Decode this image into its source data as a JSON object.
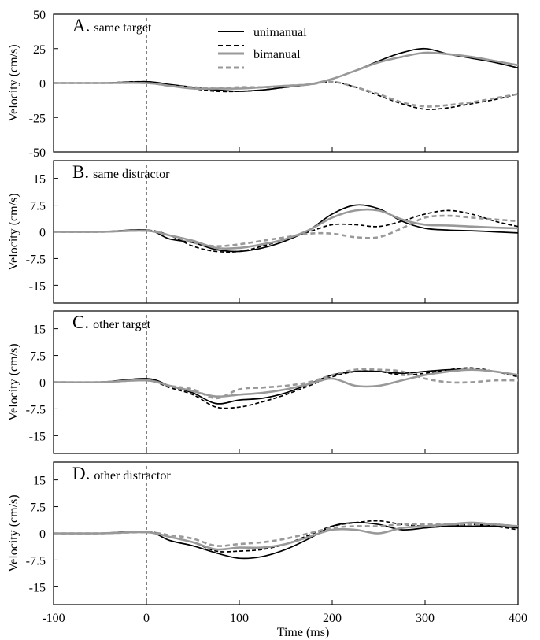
{
  "figure": {
    "xlabel": "Time (ms)",
    "xticks": [
      "-100",
      "0",
      "100",
      "200",
      "300",
      "400"
    ]
  },
  "legend": {
    "entries": [
      {
        "label": "unimanual",
        "color": "#000000",
        "dash": "solid"
      },
      {
        "label": "",
        "color": "#000000",
        "dash": "dashed"
      },
      {
        "label": "bimanual",
        "color": "#999999",
        "dash": "solid"
      },
      {
        "label": "",
        "color": "#999999",
        "dash": "dashed"
      }
    ]
  },
  "chart_data": [
    {
      "type": "line",
      "title_letter": "A.",
      "title_text": "same target",
      "ylabel": "Velocity (cm/s)",
      "xlim": [
        -100,
        400
      ],
      "ylim": [
        -50,
        50
      ],
      "yticks": [
        -50,
        -25,
        0,
        25,
        50
      ],
      "ytick_labels": [
        "-50",
        "-25",
        "0",
        "25",
        "50"
      ],
      "x": [
        -100,
        -50,
        0,
        25,
        50,
        75,
        100,
        125,
        150,
        175,
        200,
        225,
        250,
        275,
        300,
        325,
        350,
        375,
        400
      ],
      "series": [
        {
          "name": "unimanual",
          "color": "#000000",
          "dash": "solid",
          "values": [
            0,
            0,
            1,
            -1,
            -3,
            -5,
            -6,
            -5,
            -3,
            -1,
            3,
            9,
            16,
            22,
            25,
            21,
            18,
            15,
            11
          ]
        },
        {
          "name": "",
          "color": "#000000",
          "dash": "dashed",
          "values": [
            0,
            0,
            1,
            -2,
            -4,
            -6,
            -6,
            -5,
            -3,
            -1,
            1,
            -3,
            -9,
            -15,
            -19,
            -18,
            -15,
            -12,
            -8
          ]
        },
        {
          "name": "bimanual",
          "color": "#999999",
          "dash": "solid",
          "values": [
            0,
            0,
            0,
            -2,
            -4,
            -4,
            -4,
            -3,
            -2,
            -1,
            3,
            9,
            15,
            19,
            22,
            21,
            19,
            16,
            13
          ]
        },
        {
          "name": "",
          "color": "#999999",
          "dash": "dashed",
          "values": [
            0,
            0,
            0,
            -2,
            -3,
            -4,
            -3,
            -3,
            -2,
            -1,
            1,
            -3,
            -8,
            -14,
            -17,
            -16,
            -14,
            -11,
            -8
          ]
        }
      ]
    },
    {
      "type": "line",
      "title_letter": "B.",
      "title_text": "same distractor",
      "ylabel": "Velocity (cm/s)",
      "xlim": [
        -100,
        400
      ],
      "ylim": [
        -20,
        20
      ],
      "yticks": [
        -15,
        -7.5,
        0,
        7.5,
        15
      ],
      "ytick_labels": [
        "-15",
        "-7.5",
        "0",
        "7.5",
        "15"
      ],
      "x": [
        -100,
        -50,
        0,
        25,
        50,
        75,
        100,
        125,
        150,
        175,
        200,
        225,
        250,
        275,
        300,
        325,
        350,
        375,
        400
      ],
      "series": [
        {
          "name": "unimanual",
          "color": "#000000",
          "dash": "solid",
          "values": [
            0,
            0,
            0.5,
            -2,
            -3,
            -5,
            -5.5,
            -4.5,
            -2.5,
            0.5,
            5,
            7.5,
            6.5,
            3,
            1,
            0.5,
            0.3,
            0,
            -0.3
          ]
        },
        {
          "name": "",
          "color": "#000000",
          "dash": "dashed",
          "values": [
            0,
            0,
            0.5,
            -1,
            -4,
            -5.5,
            -5.5,
            -4,
            -2,
            0,
            2,
            2,
            1.5,
            3,
            5,
            6,
            5,
            3,
            1.5
          ]
        },
        {
          "name": "bimanual",
          "color": "#999999",
          "dash": "solid",
          "values": [
            0,
            0,
            0.3,
            -1,
            -2.5,
            -4.5,
            -4.5,
            -3.5,
            -2,
            0.5,
            4,
            6,
            6,
            3.5,
            2,
            1.8,
            1.5,
            1.2,
            1
          ]
        },
        {
          "name": "",
          "color": "#999999",
          "dash": "dashed",
          "values": [
            0,
            0,
            0.3,
            -1,
            -3,
            -4,
            -3.5,
            -2.5,
            -1.5,
            -0.5,
            -0.5,
            -1.5,
            -1.5,
            1,
            4,
            4.5,
            4,
            3.5,
            3
          ]
        }
      ]
    },
    {
      "type": "line",
      "title_letter": "C.",
      "title_text": "other target",
      "ylabel": "Velocity (cm/s)",
      "xlim": [
        -100,
        400
      ],
      "ylim": [
        -20,
        20
      ],
      "yticks": [
        -15,
        -7.5,
        0,
        7.5,
        15
      ],
      "ytick_labels": [
        "-15",
        "-7.5",
        "0",
        "7.5",
        "15"
      ],
      "x": [
        -100,
        -50,
        0,
        25,
        50,
        75,
        100,
        125,
        150,
        175,
        200,
        225,
        250,
        275,
        300,
        325,
        350,
        375,
        400
      ],
      "series": [
        {
          "name": "unimanual",
          "color": "#000000",
          "dash": "solid",
          "values": [
            0,
            0,
            1,
            -1,
            -3,
            -6,
            -5,
            -4.5,
            -3,
            -0.5,
            2,
            3,
            3,
            2.5,
            3,
            3.5,
            3.5,
            3,
            2
          ]
        },
        {
          "name": "",
          "color": "#000000",
          "dash": "dashed",
          "values": [
            0,
            0,
            0.5,
            -1.5,
            -3.5,
            -7,
            -7,
            -5.5,
            -3.5,
            -1,
            1.5,
            3,
            3,
            2,
            2.5,
            3.5,
            4,
            3,
            1.5
          ]
        },
        {
          "name": "bimanual",
          "color": "#999999",
          "dash": "solid",
          "values": [
            0,
            0,
            0.5,
            -1,
            -2.5,
            -4,
            -3.5,
            -3,
            -2,
            -0.5,
            1,
            -1,
            -1,
            0.5,
            2,
            3,
            3.5,
            3,
            2
          ]
        },
        {
          "name": "",
          "color": "#999999",
          "dash": "dashed",
          "values": [
            0,
            0,
            0.5,
            -1,
            -2,
            -4.5,
            -2,
            -1.5,
            -1,
            0,
            2,
            3.5,
            3.5,
            3,
            1,
            0,
            0,
            0.5,
            0.5
          ]
        }
      ]
    },
    {
      "type": "line",
      "title_letter": "D.",
      "title_text": "other distractor",
      "ylabel": "Velocity (cm/s)",
      "xlim": [
        -100,
        400
      ],
      "ylim": [
        -20,
        20
      ],
      "yticks": [
        -15,
        -7.5,
        0,
        7.5,
        15
      ],
      "ytick_labels": [
        "-15",
        "-7.5",
        "0",
        "7.5",
        "15"
      ],
      "x": [
        -100,
        -50,
        0,
        25,
        50,
        75,
        100,
        125,
        150,
        175,
        200,
        225,
        250,
        275,
        300,
        325,
        350,
        375,
        400
      ],
      "series": [
        {
          "name": "unimanual",
          "color": "#000000",
          "dash": "solid",
          "values": [
            0,
            0,
            0.5,
            -2,
            -3.5,
            -5.5,
            -7,
            -6.5,
            -4.5,
            -1.5,
            2,
            3,
            2.5,
            1,
            1.5,
            2,
            2,
            2,
            1.5
          ]
        },
        {
          "name": "",
          "color": "#000000",
          "dash": "dashed",
          "values": [
            0,
            0,
            0.5,
            -1,
            -2.5,
            -5,
            -5,
            -4.5,
            -3,
            -0.5,
            2,
            3,
            3.5,
            2.5,
            2,
            2,
            2.5,
            2,
            1
          ]
        },
        {
          "name": "bimanual",
          "color": "#999999",
          "dash": "solid",
          "values": [
            0,
            0,
            0.3,
            -1,
            -2.5,
            -4.5,
            -4,
            -4,
            -3,
            -1,
            1,
            1,
            0,
            1.5,
            2,
            2.5,
            3,
            2.5,
            2
          ]
        },
        {
          "name": "",
          "color": "#999999",
          "dash": "dashed",
          "values": [
            0,
            0,
            0.3,
            -0.5,
            -1.5,
            -3.5,
            -3,
            -2.5,
            -1.5,
            0,
            1.5,
            2,
            2,
            2.5,
            2.5,
            2.5,
            2.5,
            2.5,
            2
          ]
        }
      ]
    }
  ]
}
